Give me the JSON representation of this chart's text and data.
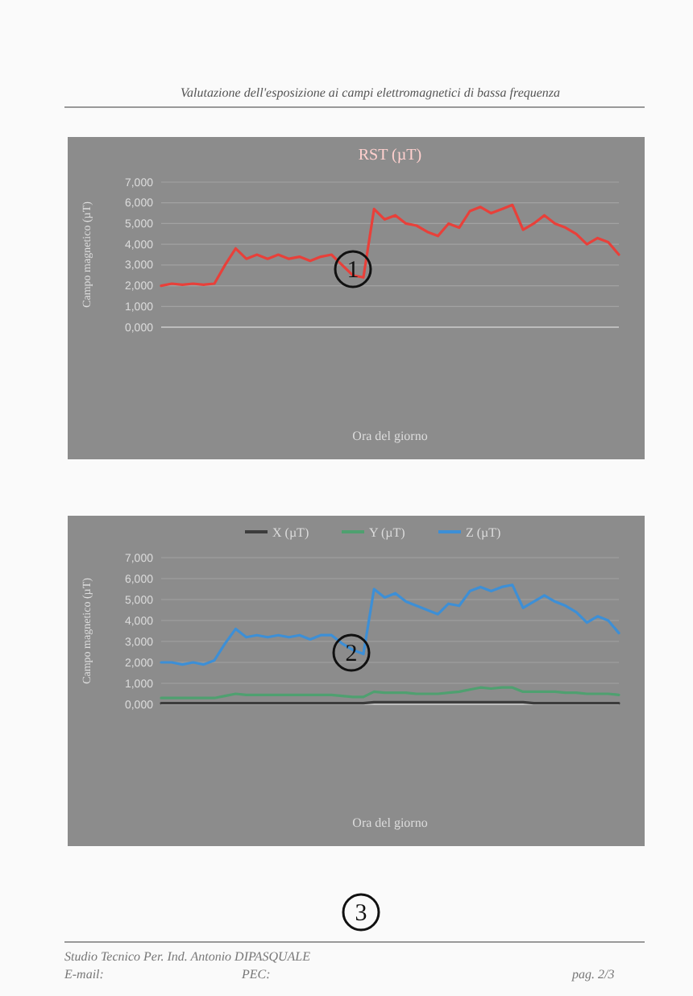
{
  "chart_data": [
    {
      "type": "line",
      "title": "RST (µT)",
      "xlabel": "Ora del giorno",
      "ylabel": "Campo magnetico (µT)",
      "annotations": [
        "Valutazione dell'esposizione ai campi elettromagnetici di bassa frequenza",
        "1"
      ],
      "categories": [
        null,
        null,
        null,
        null,
        null,
        null,
        null,
        null,
        null,
        null,
        null,
        null,
        null,
        null,
        null,
        null,
        null,
        null,
        null,
        null,
        null,
        null,
        null,
        null,
        null,
        null,
        null,
        null,
        null,
        null,
        null,
        null,
        null,
        null,
        null,
        null,
        null,
        null,
        null,
        null,
        null,
        null,
        null,
        null
      ],
      "series": [
        {
          "color": "#e8403a",
          "values": [
            2.0,
            2.1,
            2.05,
            2.1,
            2.05,
            2.1,
            3.0,
            3.8,
            3.3,
            3.5,
            3.3,
            3.5,
            3.3,
            3.4,
            3.2,
            3.4,
            3.5,
            3.0,
            2.5,
            2.4,
            5.7,
            5.2,
            5.4,
            5.0,
            4.9,
            4.6,
            4.4,
            5.0,
            4.8,
            5.6,
            5.8,
            5.5,
            5.7,
            5.9,
            4.7,
            5.0,
            5.4,
            5.0,
            4.8,
            4.5,
            4.0,
            4.3,
            4.1,
            3.5
          ]
        }
      ],
      "ylim": [
        0,
        7
      ],
      "yticks": [
        {
          "value": 0,
          "label": "0,000"
        },
        {
          "value": 1,
          "label": "1,000"
        },
        {
          "value": 2,
          "label": "2,000"
        },
        {
          "value": 3,
          "label": "3,000"
        },
        {
          "value": 4,
          "label": "4,000"
        },
        {
          "value": 5,
          "label": "5,000"
        },
        {
          "value": 6,
          "label": "6,000"
        },
        {
          "value": 7,
          "label": "7,000"
        }
      ],
      "grid": "y"
    },
    {
      "type": "line",
      "xlabel": "Ora del giorno",
      "ylabel": "Campo magnetico (µT)",
      "annotations": [
        "2",
        "3",
        "Studio Tecnico Per. Ind. Antonio DIPASQUALE",
        "E-mail:",
        "PEC:",
        "pag. 2/3"
      ],
      "categories": [
        null,
        null,
        null,
        null,
        null,
        null,
        null,
        null,
        null,
        null,
        null,
        null,
        null,
        null,
        null,
        null,
        null,
        null,
        null,
        null,
        null,
        null,
        null,
        null,
        null,
        null,
        null,
        null,
        null,
        null,
        null,
        null,
        null,
        null,
        null,
        null,
        null,
        null,
        null,
        null,
        null,
        null,
        null,
        null
      ],
      "series": [
        {
          "name": "X (µT)",
          "color": "#3c3c3c",
          "values": [
            0.05,
            0.05,
            0.05,
            0.05,
            0.05,
            0.05,
            0.05,
            0.05,
            0.05,
            0.05,
            0.05,
            0.05,
            0.05,
            0.05,
            0.05,
            0.05,
            0.05,
            0.05,
            0.05,
            0.05,
            0.1,
            0.1,
            0.1,
            0.1,
            0.1,
            0.1,
            0.1,
            0.1,
            0.1,
            0.1,
            0.1,
            0.1,
            0.1,
            0.1,
            0.1,
            0.05,
            0.05,
            0.05,
            0.05,
            0.05,
            0.05,
            0.05,
            0.05,
            0.05
          ]
        },
        {
          "name": "Y (µT)",
          "color": "#4fa070",
          "values": [
            0.3,
            0.3,
            0.3,
            0.3,
            0.3,
            0.3,
            0.4,
            0.5,
            0.45,
            0.45,
            0.45,
            0.45,
            0.45,
            0.45,
            0.45,
            0.45,
            0.45,
            0.4,
            0.35,
            0.35,
            0.6,
            0.55,
            0.55,
            0.55,
            0.5,
            0.5,
            0.5,
            0.55,
            0.6,
            0.7,
            0.8,
            0.75,
            0.8,
            0.8,
            0.6,
            0.6,
            0.6,
            0.6,
            0.55,
            0.55,
            0.5,
            0.5,
            0.5,
            0.45
          ]
        },
        {
          "name": "Z (µT)",
          "color": "#3d8fd6",
          "values": [
            2.0,
            2.0,
            1.9,
            2.0,
            1.9,
            2.1,
            2.9,
            3.6,
            3.2,
            3.3,
            3.2,
            3.3,
            3.2,
            3.3,
            3.1,
            3.3,
            3.3,
            2.9,
            2.6,
            2.4,
            5.5,
            5.1,
            5.3,
            4.9,
            4.7,
            4.5,
            4.3,
            4.8,
            4.7,
            5.4,
            5.6,
            5.4,
            5.6,
            5.7,
            4.6,
            4.9,
            5.2,
            4.9,
            4.7,
            4.4,
            3.9,
            4.2,
            4.0,
            3.4
          ]
        }
      ],
      "ylim": [
        0,
        7
      ],
      "yticks": [
        {
          "value": 0,
          "label": "0,000"
        },
        {
          "value": 1,
          "label": "1,000"
        },
        {
          "value": 2,
          "label": "2,000"
        },
        {
          "value": 3,
          "label": "3,000"
        },
        {
          "value": 4,
          "label": "4,000"
        },
        {
          "value": 5,
          "label": "5,000"
        },
        {
          "value": 6,
          "label": "6,000"
        },
        {
          "value": 7,
          "label": "7,000"
        }
      ],
      "grid": "y",
      "legend": "top"
    }
  ]
}
